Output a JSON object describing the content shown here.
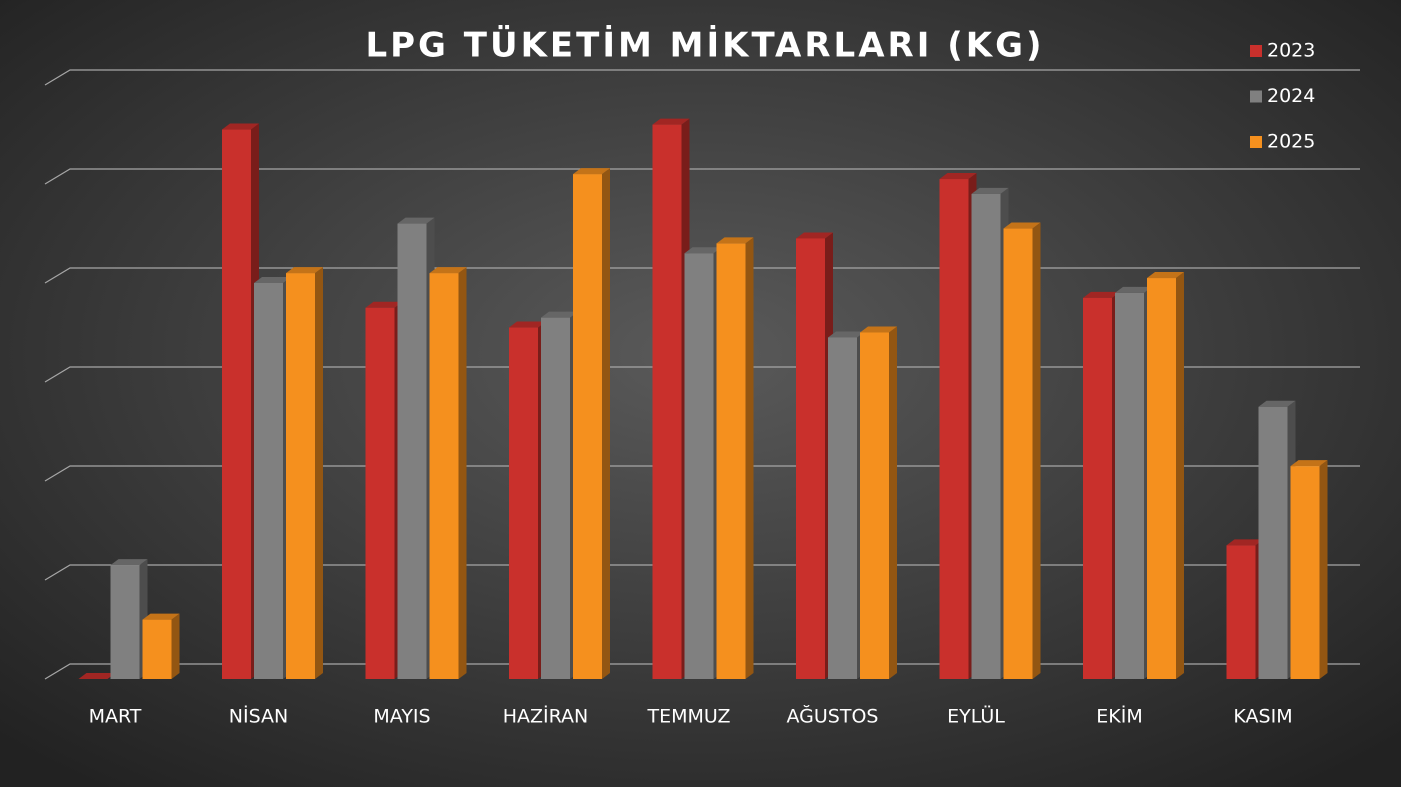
{
  "chart_data": {
    "type": "bar3d",
    "title": "LPG TÜKETİM MİKTARLARI (KG)",
    "categories": [
      "MART",
      "NİSAN",
      "MAYIS",
      "HAZİRAN",
      "TEMMUZ",
      "AĞUSTOS",
      "EYLÜL",
      "EKİM",
      "KASIM"
    ],
    "series": [
      {
        "name": "2023",
        "color": "#c9302c",
        "values": [
          0,
          5.55,
          3.75,
          3.55,
          5.6,
          4.45,
          5.05,
          3.85,
          1.35
        ]
      },
      {
        "name": "2024",
        "color": "#808080",
        "values": [
          1.15,
          4.0,
          4.6,
          3.65,
          4.3,
          3.45,
          4.9,
          3.9,
          2.75
        ]
      },
      {
        "name": "2025",
        "color": "#f5901e",
        "values": [
          0.6,
          4.1,
          4.1,
          5.1,
          4.4,
          3.5,
          4.55,
          4.05,
          2.15
        ]
      }
    ],
    "ylim": [
      0,
      6
    ],
    "yticks": [
      0,
      1,
      2,
      3,
      4,
      5,
      6
    ],
    "grid": true,
    "legend": "top-right"
  }
}
